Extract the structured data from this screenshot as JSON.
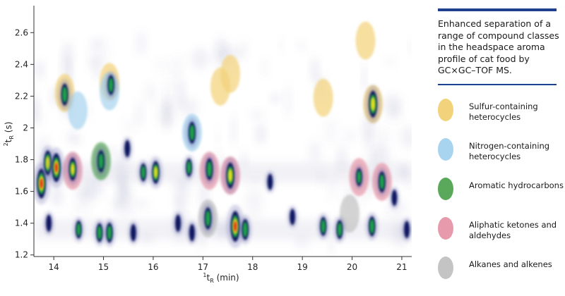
{
  "description": "Enhanced separation of a range of compound classes in the headspace aroma profile of cat food by GC×GC–TOF MS.",
  "colors": {
    "accent_bar": "#1f3f8f",
    "background_smear": "#8a8ab8",
    "peak_core": "#0b1660"
  },
  "legend": [
    {
      "label": "Sulfur-containing heterocycles",
      "color": "#f2d27a"
    },
    {
      "label": "Nitrogen-containing heterocycles",
      "color": "#a9d4ef"
    },
    {
      "label": "Aromatic hydrocarbons",
      "color": "#5aa85a"
    },
    {
      "label": "Aliphatic ketones and aldehydes",
      "color": "#e79aab"
    },
    {
      "label": "Alkanes and alkenes",
      "color": "#c4c4c4"
    }
  ],
  "chart_data": {
    "type": "heatmap",
    "xlabel": "1tR (min)",
    "ylabel": "2tR (s)",
    "xlabel_sup": "1",
    "xlabel_main": "t",
    "xlabel_sub": "R",
    "xlabel_unit": " (min)",
    "ylabel_sup": "2",
    "ylabel_main": "t",
    "ylabel_sub": "R",
    "ylabel_unit": " (s)",
    "xlim": [
      13.6,
      21.2
    ],
    "ylim": [
      1.19,
      2.77
    ],
    "xticks": [
      "14",
      "15",
      "16",
      "17",
      "18",
      "19",
      "20",
      "21"
    ],
    "yticks": [
      "1.2",
      "1.4",
      "1.6",
      "1.8",
      "2",
      "2.2",
      "2.4",
      "2.6"
    ],
    "highlights": [
      {
        "class": "Sulfur-containing heterocycles",
        "x": 14.22,
        "y": 2.22
      },
      {
        "class": "Sulfur-containing heterocycles",
        "x": 15.12,
        "y": 2.29
      },
      {
        "class": "Sulfur-containing heterocycles",
        "x": 17.35,
        "y": 2.26
      },
      {
        "class": "Sulfur-containing heterocycles",
        "x": 17.55,
        "y": 2.34
      },
      {
        "class": "Sulfur-containing heterocycles",
        "x": 19.42,
        "y": 2.19
      },
      {
        "class": "Sulfur-containing heterocycles",
        "x": 20.27,
        "y": 2.55
      },
      {
        "class": "Sulfur-containing heterocycles",
        "x": 20.42,
        "y": 2.15
      },
      {
        "class": "Nitrogen-containing heterocycles",
        "x": 14.48,
        "y": 2.11
      },
      {
        "class": "Nitrogen-containing heterocycles",
        "x": 15.12,
        "y": 2.23
      },
      {
        "class": "Nitrogen-containing heterocycles",
        "x": 16.78,
        "y": 1.97
      },
      {
        "class": "Aromatic hydrocarbons",
        "x": 14.95,
        "y": 1.79
      },
      {
        "class": "Aliphatic ketones and aldehydes",
        "x": 14.38,
        "y": 1.73
      },
      {
        "class": "Aliphatic ketones and aldehydes",
        "x": 17.13,
        "y": 1.73
      },
      {
        "class": "Aliphatic ketones and aldehydes",
        "x": 17.55,
        "y": 1.7
      },
      {
        "class": "Aliphatic ketones and aldehydes",
        "x": 20.14,
        "y": 1.69
      },
      {
        "class": "Aliphatic ketones and aldehydes",
        "x": 20.6,
        "y": 1.66
      },
      {
        "class": "Alkanes and alkenes",
        "x": 17.1,
        "y": 1.43
      },
      {
        "class": "Alkanes and alkenes",
        "x": 19.95,
        "y": 1.46
      }
    ],
    "peaks": [
      {
        "x": 13.75,
        "y": 1.65,
        "i": 0.95
      },
      {
        "x": 13.88,
        "y": 1.78,
        "i": 0.7
      },
      {
        "x": 14.05,
        "y": 1.75,
        "i": 0.9
      },
      {
        "x": 14.22,
        "y": 2.21,
        "i": 0.55
      },
      {
        "x": 14.38,
        "y": 1.74,
        "i": 0.6
      },
      {
        "x": 14.95,
        "y": 1.79,
        "i": 0.55
      },
      {
        "x": 15.15,
        "y": 2.27,
        "i": 0.45
      },
      {
        "x": 15.48,
        "y": 1.87,
        "i": 0.3
      },
      {
        "x": 15.8,
        "y": 1.72,
        "i": 0.35
      },
      {
        "x": 16.05,
        "y": 1.72,
        "i": 0.6
      },
      {
        "x": 16.72,
        "y": 1.75,
        "i": 0.35
      },
      {
        "x": 16.78,
        "y": 1.97,
        "i": 0.55
      },
      {
        "x": 17.13,
        "y": 1.74,
        "i": 0.55
      },
      {
        "x": 17.55,
        "y": 1.7,
        "i": 0.75
      },
      {
        "x": 17.1,
        "y": 1.43,
        "i": 0.55
      },
      {
        "x": 17.65,
        "y": 1.38,
        "i": 1.0
      },
      {
        "x": 17.85,
        "y": 1.36,
        "i": 0.5
      },
      {
        "x": 18.35,
        "y": 1.66,
        "i": 0.25
      },
      {
        "x": 19.42,
        "y": 1.38,
        "i": 0.4
      },
      {
        "x": 19.75,
        "y": 1.36,
        "i": 0.4
      },
      {
        "x": 20.14,
        "y": 1.69,
        "i": 0.35
      },
      {
        "x": 20.42,
        "y": 2.15,
        "i": 0.8
      },
      {
        "x": 20.6,
        "y": 1.66,
        "i": 0.5
      },
      {
        "x": 20.4,
        "y": 1.38,
        "i": 0.45
      },
      {
        "x": 13.9,
        "y": 1.4,
        "i": 0.3
      },
      {
        "x": 14.5,
        "y": 1.36,
        "i": 0.35
      },
      {
        "x": 14.92,
        "y": 1.34,
        "i": 0.4
      },
      {
        "x": 15.12,
        "y": 1.34,
        "i": 0.45
      },
      {
        "x": 15.6,
        "y": 1.34,
        "i": 0.3
      },
      {
        "x": 16.5,
        "y": 1.4,
        "i": 0.3
      },
      {
        "x": 16.78,
        "y": 1.34,
        "i": 0.3
      },
      {
        "x": 18.8,
        "y": 1.44,
        "i": 0.25
      },
      {
        "x": 21.1,
        "y": 1.36,
        "i": 0.3
      },
      {
        "x": 20.85,
        "y": 1.56,
        "i": 0.25
      }
    ]
  }
}
